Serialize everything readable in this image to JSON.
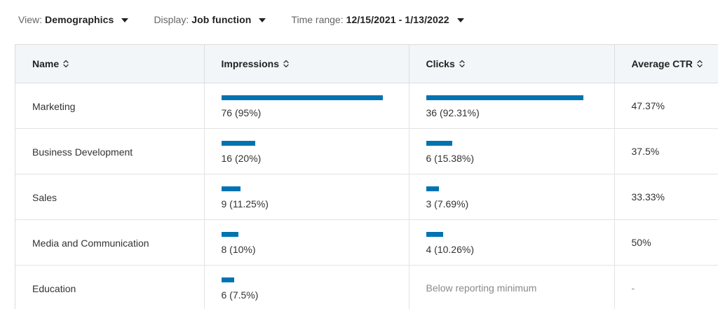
{
  "filters": {
    "view": {
      "label": "View:",
      "value": "Demographics"
    },
    "display": {
      "label": "Display:",
      "value": "Job function"
    },
    "time_range": {
      "label": "Time range:",
      "value": "12/15/2021 - 1/13/2022"
    }
  },
  "table": {
    "columns": {
      "name": "Name",
      "impressions": "Impressions",
      "clicks": "Clicks",
      "ctr": "Average CTR"
    },
    "rows": [
      {
        "name": "Marketing",
        "impressions_text": "76 (95%)",
        "impressions_fraction": 0.95,
        "clicks_text": "36 (92.31%)",
        "clicks_fraction": 0.9231,
        "ctr": "47.37%"
      },
      {
        "name": "Business Development",
        "impressions_text": "16 (20%)",
        "impressions_fraction": 0.2,
        "clicks_text": "6 (15.38%)",
        "clicks_fraction": 0.1538,
        "ctr": "37.5%"
      },
      {
        "name": "Sales",
        "impressions_text": "9 (11.25%)",
        "impressions_fraction": 0.1125,
        "clicks_text": "3 (7.69%)",
        "clicks_fraction": 0.0769,
        "ctr": "33.33%"
      },
      {
        "name": "Media and Communication",
        "impressions_text": "8 (10%)",
        "impressions_fraction": 0.1,
        "clicks_text": "4 (10.26%)",
        "clicks_fraction": 0.1026,
        "ctr": "50%"
      },
      {
        "name": "Education",
        "impressions_text": "6 (7.5%)",
        "impressions_fraction": 0.075,
        "clicks_text": "Below reporting minimum",
        "clicks_fraction": 0,
        "ctr": "-"
      }
    ]
  },
  "colors": {
    "bar": "#0073b1",
    "header_bg": "#f3f6f8",
    "muted_text": "#8a8a8a"
  },
  "icons": {
    "dropdown": "caret-down-icon",
    "sort": "sort-icon"
  }
}
